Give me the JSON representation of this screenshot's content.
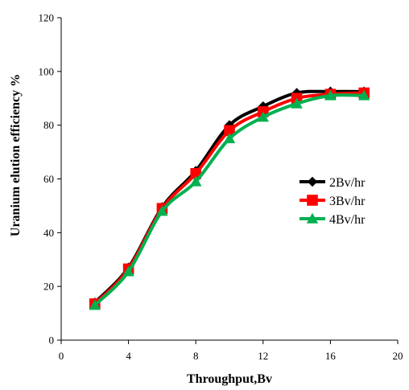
{
  "chart_data": {
    "type": "line",
    "xlabel": "Throughput,Bv",
    "ylabel": "Uranium elution efficiency %",
    "xlim": [
      0,
      20
    ],
    "ylim": [
      0,
      120
    ],
    "xticks": [
      0,
      4,
      8,
      12,
      16,
      20
    ],
    "yticks": [
      0,
      20,
      40,
      60,
      80,
      100,
      120
    ],
    "grid": false,
    "legend_position": "right",
    "x": [
      2,
      4,
      6,
      8,
      10,
      12,
      14,
      16,
      18
    ],
    "series": [
      {
        "name": "2Bv/hr",
        "color": "#000000",
        "marker": "diamond",
        "values": [
          14,
          27,
          49.5,
          63,
          80,
          87,
          92,
          92.5,
          92.5
        ]
      },
      {
        "name": "3Bv/hr",
        "color": "#ff0000",
        "marker": "square",
        "values": [
          13.5,
          26.5,
          49,
          62,
          78,
          85,
          90,
          91.5,
          92
        ]
      },
      {
        "name": "4Bv/hr",
        "color": "#00b050",
        "marker": "triangle",
        "values": [
          13,
          25.5,
          48,
          59,
          75,
          83,
          88,
          91,
          91
        ]
      }
    ]
  }
}
